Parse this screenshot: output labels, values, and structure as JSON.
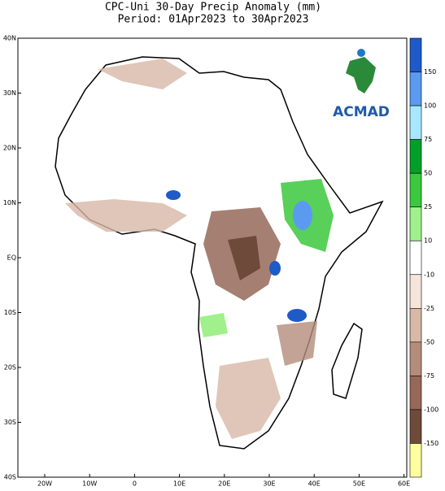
{
  "title": "CPC-Uni 30-Day Precip Anomaly (mm)",
  "subtitle": "Period: 01Apr2023 to 30Apr2023",
  "logo": {
    "text": "ACMAD"
  },
  "map": {
    "lat_labels": [
      "40N",
      "30N",
      "20N",
      "10N",
      "EQ",
      "10S",
      "20S",
      "30S",
      "40S"
    ],
    "lon_labels": [
      "20W",
      "10W",
      "0",
      "10E",
      "20E",
      "30E",
      "40E",
      "50E",
      "60E"
    ]
  },
  "colorbar": {
    "labels": [
      150,
      100,
      75,
      50,
      25,
      10,
      -10,
      -25,
      -50,
      -75,
      -100,
      -150
    ],
    "colors": [
      "#1e5ac8",
      "#5a9bf0",
      "#a8e8ff",
      "#00a028",
      "#3cc83c",
      "#a0f08c",
      "#ffffff",
      "#f5e4da",
      "#d8b8a6",
      "#b48c7a",
      "#96685a",
      "#6e4a3a",
      "#ffffa0"
    ]
  }
}
